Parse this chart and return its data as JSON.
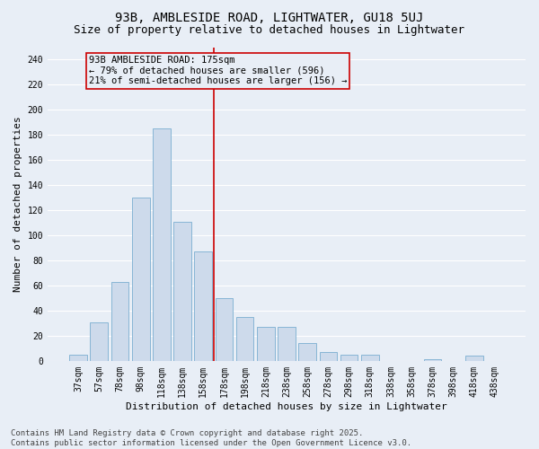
{
  "title": "93B, AMBLESIDE ROAD, LIGHTWATER, GU18 5UJ",
  "subtitle": "Size of property relative to detached houses in Lightwater",
  "xlabel": "Distribution of detached houses by size in Lightwater",
  "ylabel": "Number of detached properties",
  "bar_labels": [
    "37sqm",
    "57sqm",
    "78sqm",
    "98sqm",
    "118sqm",
    "138sqm",
    "158sqm",
    "178sqm",
    "198sqm",
    "218sqm",
    "238sqm",
    "258sqm",
    "278sqm",
    "298sqm",
    "318sqm",
    "338sqm",
    "358sqm",
    "378sqm",
    "398sqm",
    "418sqm",
    "438sqm"
  ],
  "bar_values": [
    5,
    31,
    63,
    130,
    185,
    111,
    87,
    50,
    35,
    27,
    27,
    14,
    7,
    5,
    5,
    0,
    0,
    1,
    0,
    4,
    0
  ],
  "bar_color": "#cddaeb",
  "bar_edgecolor": "#7aaed0",
  "background_color": "#e8eef6",
  "grid_color": "#ffffff",
  "vline_color": "#cc0000",
  "vline_pos": 6.5,
  "annotation_text": "93B AMBLESIDE ROAD: 175sqm\n← 79% of detached houses are smaller (596)\n21% of semi-detached houses are larger (156) →",
  "annotation_box_edgecolor": "#cc0000",
  "annotation_box_facecolor": "#e8eef6",
  "ylim": [
    0,
    250
  ],
  "yticks": [
    0,
    20,
    40,
    60,
    80,
    100,
    120,
    140,
    160,
    180,
    200,
    220,
    240
  ],
  "footer": "Contains HM Land Registry data © Crown copyright and database right 2025.\nContains public sector information licensed under the Open Government Licence v3.0.",
  "title_fontsize": 10,
  "subtitle_fontsize": 9,
  "tick_fontsize": 7,
  "ylabel_fontsize": 8,
  "xlabel_fontsize": 8,
  "annotation_fontsize": 7.5,
  "footer_fontsize": 6.5
}
